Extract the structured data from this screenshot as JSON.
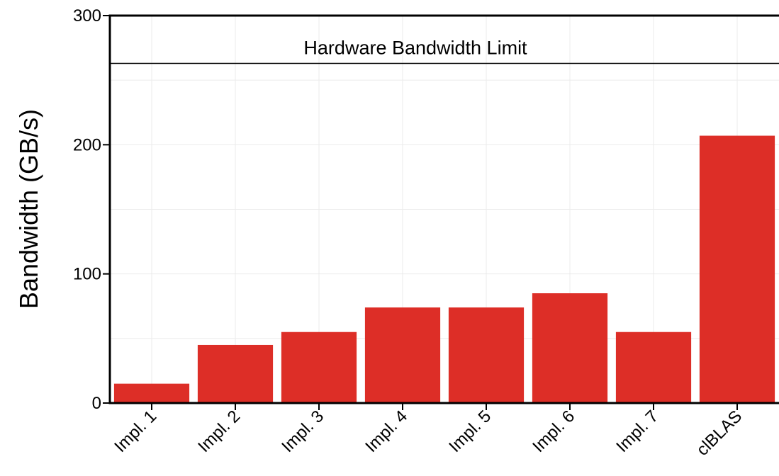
{
  "chart_data": {
    "type": "bar",
    "title": "",
    "xlabel": "",
    "ylabel": "Bandwidth (GB/s)",
    "categories": [
      "Impl. 1",
      "Impl. 2",
      "Impl. 3",
      "Impl. 4",
      "Impl. 5",
      "Impl. 6",
      "Impl. 7",
      "clBLAS"
    ],
    "values": [
      15,
      45,
      55,
      74,
      74,
      85,
      55,
      207
    ],
    "ylim": [
      0,
      300
    ],
    "yticks": [
      0,
      100,
      200,
      300
    ],
    "yticklabels": [
      "0",
      "100",
      "200",
      "300"
    ],
    "grid": true,
    "minor_gridlines": [
      50,
      150,
      250
    ],
    "bar_color": "#dd2e27",
    "reference_line": {
      "value": 263,
      "label": "Hardware Bandwidth Limit",
      "color": "#000000"
    }
  }
}
